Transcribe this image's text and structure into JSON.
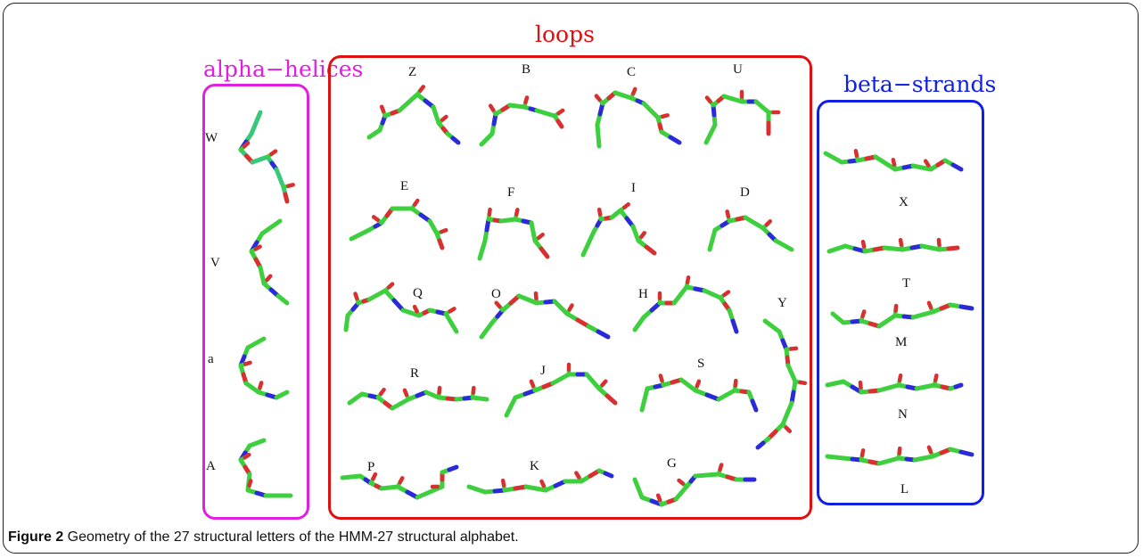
{
  "colors": {
    "alpha": "#e020e0",
    "loops": "#e01010",
    "beta": "#1020e0",
    "carbon": "#3ecf3e",
    "carbon_alpha": "#38c87a",
    "nitrogen": "#2a2ad8",
    "oxygen": "#d83030"
  },
  "groups": {
    "alpha": {
      "title": "alpha−helices",
      "letters": [
        "W",
        "V",
        "a",
        "A"
      ]
    },
    "loops": {
      "title": "loops",
      "letters": [
        "Z",
        "B",
        "C",
        "U",
        "E",
        "F",
        "I",
        "D",
        "Q",
        "O",
        "H",
        "Y",
        "R",
        "J",
        "S",
        "P",
        "K",
        "G"
      ]
    },
    "beta": {
      "title": "beta−strands",
      "letters": [
        "X",
        "T",
        "M",
        "N",
        "L"
      ]
    }
  },
  "caption": {
    "label": "Figure 2",
    "text": " Geometry of the 27 structural letters of the HMM-27 structural alphabet."
  }
}
